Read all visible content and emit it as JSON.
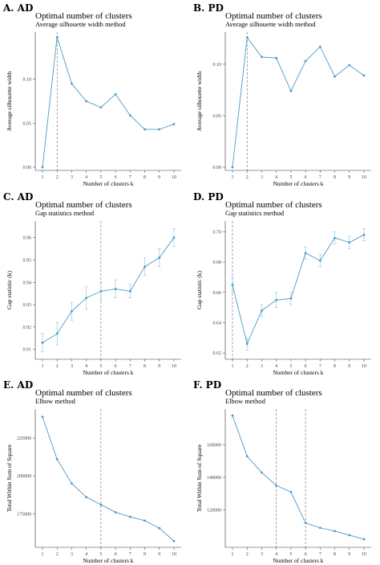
{
  "colors": {
    "series": "#4a9bc9",
    "errorbar": "#8fc1dd",
    "axis": "#333333",
    "dashed": "#666666"
  },
  "chart_data": [
    {
      "type": "line",
      "panel": "A. AD",
      "title": "Optimal number of clusters",
      "subtitle": "Average silhouette width method",
      "xlabel": "Number of clusters k",
      "ylabel": "Average silhouette width",
      "x": [
        "1",
        "2",
        "3",
        "4",
        "5",
        "6",
        "7",
        "8",
        "9",
        "10"
      ],
      "values": [
        0.0,
        0.148,
        0.095,
        0.075,
        0.068,
        0.083,
        0.059,
        0.043,
        0.043,
        0.049
      ],
      "ylim": [
        0,
        0.15
      ],
      "yticks": [
        "0.00",
        "0.05",
        "0.10"
      ],
      "ytick_values": [
        0,
        0.05,
        0.1
      ],
      "optimal_k": 2
    },
    {
      "type": "line",
      "panel": "B. PD",
      "title": "Optimal number of clusters",
      "subtitle": "Average silhouette width method",
      "xlabel": "Number of clusters k",
      "ylabel": "Average silhouette width",
      "x": [
        "1",
        "2",
        "3",
        "4",
        "5",
        "6",
        "7",
        "8",
        "9",
        "10"
      ],
      "values": [
        0.0,
        0.126,
        0.107,
        0.106,
        0.074,
        0.103,
        0.117,
        0.088,
        0.099,
        0.089
      ],
      "ylim": [
        0,
        0.128
      ],
      "yticks": [
        "0.00",
        "0.05",
        "0.10"
      ],
      "ytick_values": [
        0,
        0.05,
        0.1
      ],
      "optimal_k": 2
    },
    {
      "type": "line",
      "panel": "C. AD",
      "title": "Optimal number of clusters",
      "subtitle": "Gap statistics method",
      "xlabel": "Number of clusters k",
      "ylabel": "Gap statistic (k)",
      "x": [
        "1",
        "2",
        "3",
        "4",
        "5",
        "6",
        "7",
        "8",
        "9",
        "10"
      ],
      "values": [
        0.913,
        0.917,
        0.927,
        0.933,
        0.936,
        0.937,
        0.936,
        0.947,
        0.951,
        0.96
      ],
      "errors": [
        0.004,
        0.005,
        0.004,
        0.005,
        0.004,
        0.004,
        0.003,
        0.004,
        0.004,
        0.004
      ],
      "ylim": [
        0.907,
        0.966
      ],
      "yticks": [
        "0.91",
        "0.92",
        "0.93",
        "0.94",
        "0.95",
        "0.96"
      ],
      "ytick_values": [
        0.91,
        0.92,
        0.93,
        0.94,
        0.95,
        0.96
      ],
      "optimal_k": 5
    },
    {
      "type": "line",
      "panel": "D. PD",
      "title": "Optimal number of clusters",
      "subtitle": "Gap statistics method",
      "xlabel": "Number of clusters k",
      "ylabel": "Gap statistic (k)",
      "x": [
        "1",
        "2",
        "3",
        "4",
        "5",
        "6",
        "7",
        "8",
        "9",
        "10"
      ],
      "values": [
        0.665,
        0.626,
        0.648,
        0.655,
        0.656,
        0.686,
        0.681,
        0.696,
        0.693,
        0.698
      ],
      "errors": [
        0.005,
        0.004,
        0.004,
        0.005,
        0.004,
        0.004,
        0.004,
        0.004,
        0.004,
        0.004
      ],
      "ylim": [
        0.618,
        0.705
      ],
      "yticks": [
        "0.62",
        "0.64",
        "0.66",
        "0.68",
        "0.70"
      ],
      "ytick_values": [
        0.62,
        0.64,
        0.66,
        0.68,
        0.7
      ],
      "optimal_k": 1
    },
    {
      "type": "line",
      "panel": "E. AD",
      "title": "Optimal number of clusters",
      "subtitle": "Elbow method",
      "xlabel": "Number of clusters k",
      "ylabel": "Total Within Sum of Square",
      "x": [
        "1",
        "2",
        "3",
        "4",
        "5",
        "6",
        "7",
        "8",
        "9",
        "10"
      ],
      "values": [
        239000,
        211000,
        195000,
        186000,
        181000,
        176000,
        173000,
        170500,
        165500,
        157000
      ],
      "ylim": [
        155000,
        242000
      ],
      "yticks": [
        "175000",
        "200000",
        "225000"
      ],
      "ytick_values": [
        175000,
        200000,
        225000
      ],
      "optimal_k": [
        5
      ]
    },
    {
      "type": "line",
      "panel": "F. PD",
      "title": "Optimal number of clusters",
      "subtitle": "Elbow method",
      "xlabel": "Number of clusters k",
      "ylabel": "Total Within Sum of Square",
      "x": [
        "1",
        "2",
        "3",
        "4",
        "5",
        "6",
        "7",
        "8",
        "9",
        "10"
      ],
      "values": [
        178000,
        153000,
        143000,
        135000,
        131000,
        112000,
        109000,
        107000,
        104500,
        102000
      ],
      "ylim": [
        99000,
        180000
      ],
      "yticks": [
        "120000",
        "140000",
        "160000"
      ],
      "ytick_values": [
        120000,
        140000,
        160000
      ],
      "optimal_k": [
        4,
        6
      ]
    }
  ]
}
